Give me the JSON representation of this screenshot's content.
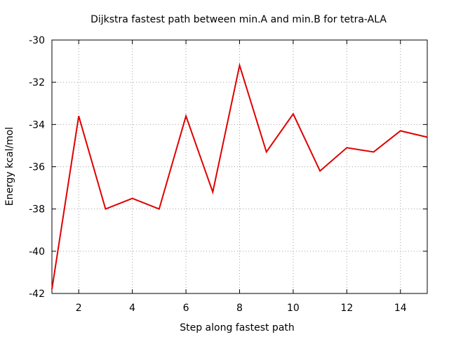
{
  "chart_data": {
    "type": "line",
    "title": "Dijkstra fastest path between min.A and min.B for tetra-ALA",
    "xlabel": "Step along fastest path",
    "ylabel": "Energy kcal/mol",
    "xlim": [
      1,
      15
    ],
    "ylim": [
      -42,
      -30
    ],
    "xticks": [
      2,
      4,
      6,
      8,
      10,
      12,
      14
    ],
    "yticks": [
      -42,
      -40,
      -38,
      -36,
      -34,
      -32,
      -30
    ],
    "grid": true,
    "legend": "none",
    "series": [
      {
        "color": "#e00000",
        "x": [
          1,
          2,
          3,
          4,
          5,
          6,
          7,
          8,
          9,
          10,
          11,
          12,
          13,
          14,
          15
        ],
        "y": [
          -41.8,
          -33.6,
          -38.0,
          -37.5,
          -38.0,
          -33.6,
          -37.2,
          -31.2,
          -35.3,
          -33.5,
          -36.2,
          -35.1,
          -35.3,
          -34.3,
          -34.6
        ]
      }
    ]
  }
}
